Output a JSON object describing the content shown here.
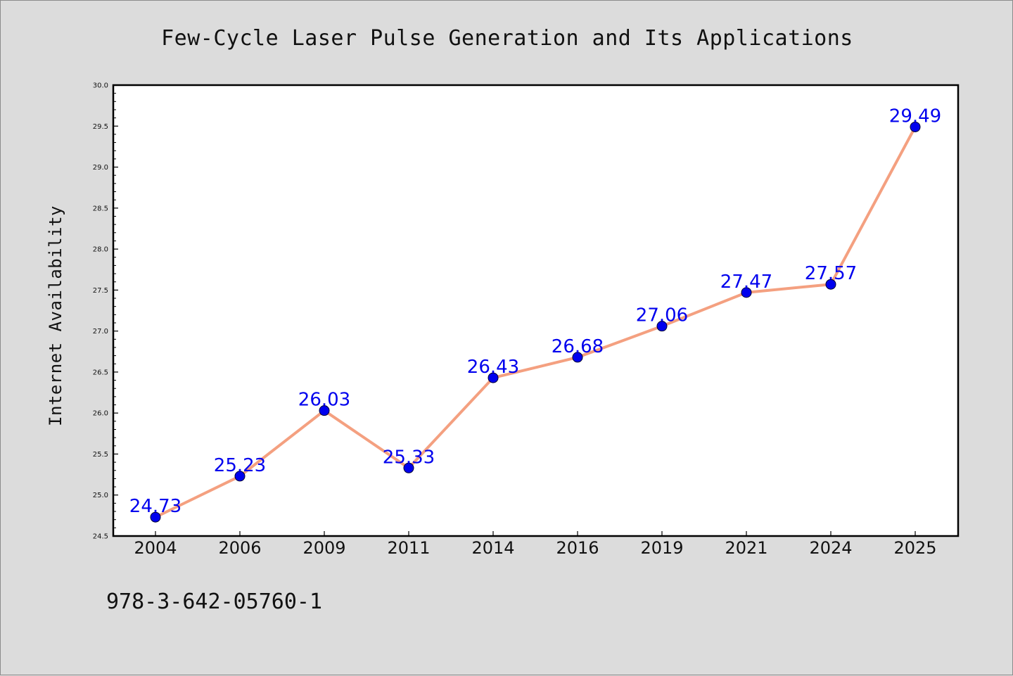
{
  "chart_data": {
    "type": "line",
    "title": "Few-Cycle Laser Pulse Generation and Its Applications",
    "xlabel": "",
    "ylabel": "Internet Availability",
    "categories": [
      "2004",
      "2006",
      "2009",
      "2011",
      "2014",
      "2016",
      "2019",
      "2021",
      "2024",
      "2025"
    ],
    "values": [
      24.73,
      25.23,
      26.03,
      25.33,
      26.43,
      26.68,
      27.06,
      27.47,
      27.57,
      29.49
    ],
    "data_labels": [
      "24.73",
      "25.23",
      "26.03",
      "25.33",
      "26.43",
      "26.68",
      "27.06",
      "27.47",
      "27.57",
      "29.49"
    ],
    "ylim": [
      24.5,
      30.0
    ],
    "yticks": [
      "24.5",
      "25.0",
      "25.5",
      "26.0",
      "26.5",
      "27.0",
      "27.5",
      "28.0",
      "28.5",
      "29.0",
      "29.5",
      "30.0"
    ],
    "grid": false,
    "line_color": "#f4a080",
    "marker_color": "#0000ee"
  },
  "footer": {
    "isbn": "978-3-642-05760-1"
  }
}
